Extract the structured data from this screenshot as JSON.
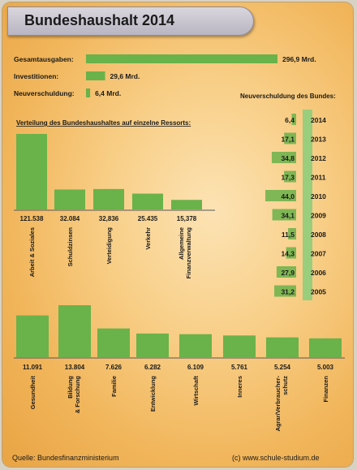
{
  "title": "Bundeshaushalt 2014",
  "colors": {
    "bar": "#6ab24a",
    "bar_light": "#9acd7c",
    "title_bar": "#c9c6cf"
  },
  "summary": {
    "items": [
      {
        "label": "Gesamtausgaben:",
        "value": 296.9,
        "value_text": "296,9 Mrd."
      },
      {
        "label": "Investitionen:",
        "value": 29.6,
        "value_text": "29,6 Mrd."
      },
      {
        "label": "Neuverschuldung:",
        "value": 6.4,
        "value_text": "6,4 Mrd."
      }
    ]
  },
  "source_text": "Quelle: Bundesfinanzministerium",
  "credit_text": "(c) www.schule-studium.de",
  "chart_data": [
    {
      "type": "bar",
      "title": "Verteilung des Bundeshaushaltes auf einzelne Ressorts:",
      "categories": [
        "Arbeit & Soziales",
        "Schuldzinsen",
        "Verteidigung",
        "Verkehr",
        "Allgemeine Finanzverwaltung"
      ],
      "value_labels": [
        "121.538",
        "32.084",
        "32,836",
        "25.435",
        "15,378"
      ],
      "values": [
        121538,
        32084,
        32836,
        25435,
        15378
      ]
    },
    {
      "type": "bar",
      "title": "",
      "categories": [
        "Gesundheit",
        "Bildung & Forschung",
        "Familie",
        "Entwicklung",
        "Wirtschaft",
        "Inneres",
        "Agrar/Verbraucher-schutz",
        "Finanzen"
      ],
      "value_labels": [
        "11.091",
        "13.804",
        "7.626",
        "6.282",
        "6.109",
        "5.761",
        "5.254",
        "5.003"
      ],
      "values": [
        11091,
        13804,
        7626,
        6282,
        6109,
        5761,
        5254,
        5003
      ]
    },
    {
      "type": "bar",
      "title": "Neuverschuldung des Bundes:",
      "categories": [
        "2014",
        "2013",
        "2012",
        "2011",
        "2010",
        "2009",
        "2008",
        "2007",
        "2006",
        "2005"
      ],
      "value_labels": [
        "6,4",
        "17,1",
        "34,8",
        "17,3",
        "44,0",
        "34,1",
        "11,5",
        "14,3",
        "27,9",
        "31,2"
      ],
      "values": [
        6.4,
        17.1,
        34.8,
        17.3,
        44.0,
        34.1,
        11.5,
        14.3,
        27.9,
        31.2
      ]
    }
  ]
}
